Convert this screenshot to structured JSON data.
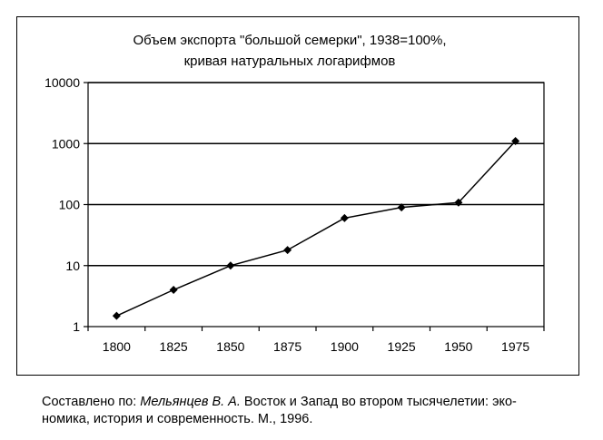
{
  "chart_data": {
    "type": "line",
    "title": [
      "Объем экспорта \"большой семерки\", 1938=100%,",
      "кривая натуральных логарифмов"
    ],
    "x": [
      "1800",
      "1825",
      "1850",
      "1875",
      "1900",
      "1925",
      "1950",
      "1975"
    ],
    "values": [
      1.5,
      4,
      10,
      18,
      60,
      90,
      108,
      1100
    ],
    "y_scale": "log",
    "ylim": [
      1,
      10000
    ],
    "y_ticks": [
      "1",
      "10",
      "100",
      "1000",
      "10000"
    ],
    "xlabel": "",
    "ylabel": "",
    "grid": "horizontal",
    "legend": "none",
    "line_color": "#000000",
    "marker": "diamond"
  },
  "caption": {
    "prefix": "Составлено по: ",
    "author": "Мельянцев В. А.",
    "line1_rest": " Восток и Запад во втором тысячелетии: эко-",
    "line2": "номика, история и современность. М., 1996."
  }
}
